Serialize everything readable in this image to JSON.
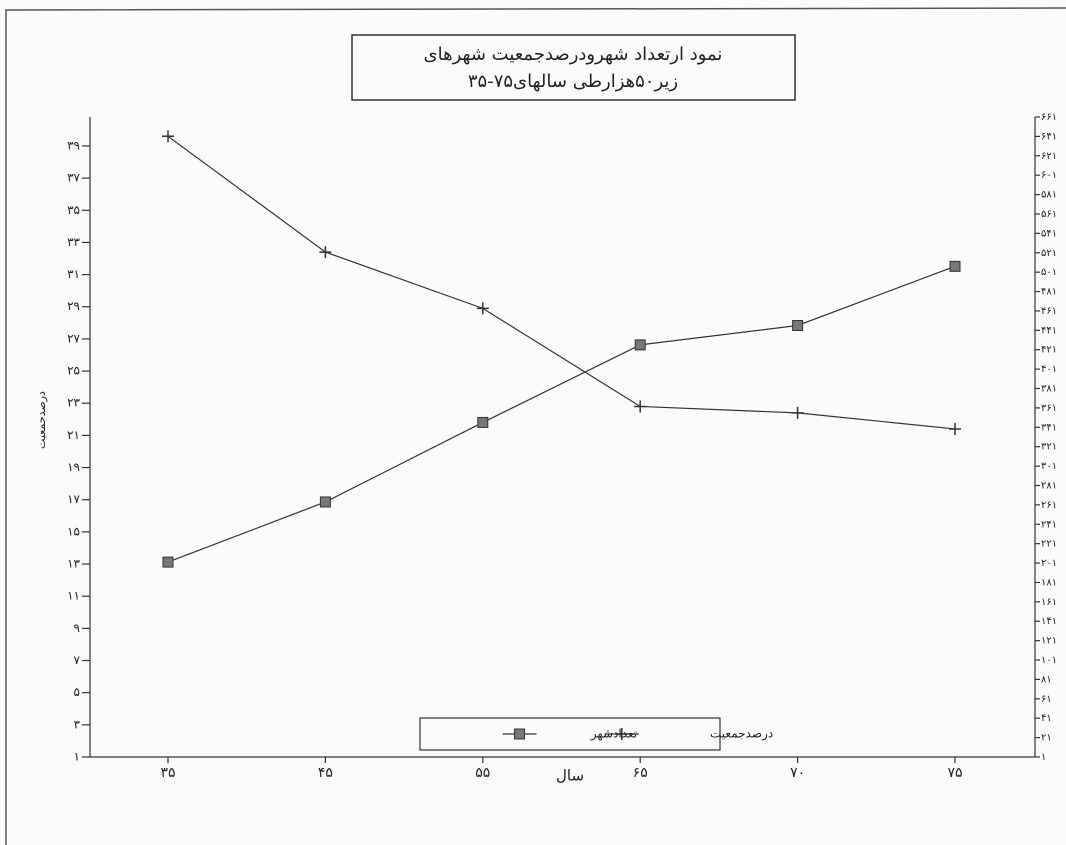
{
  "chart_data": {
    "type": "line",
    "title": [
      "نمود ارتعداد شهرودرصدجمعیت شهرهای",
      "زیر۵۰هزارطی سالهای۷۵-۳۵"
    ],
    "x_label": "سال",
    "y_label": "درصدجمعیت",
    "categories": [
      "۳۵",
      "۴۵",
      "۵۵",
      "۶۵",
      "۷۰",
      "۷۵"
    ],
    "series": [
      {
        "name": "تعدادشهر",
        "color": "#333333",
        "marker": "square",
        "axis": "y2",
        "values": [
          202,
          264,
          346,
          426,
          446,
          507
        ]
      },
      {
        "name": "درصدجمعیت",
        "color": "#333333",
        "marker": "plus",
        "values": [
          39.6,
          32.4,
          28.9,
          22.8,
          22.4,
          21.4
        ]
      }
    ],
    "ylim": [
      1,
      40.8
    ],
    "yticks": [
      {
        "value": 1,
        "label": "۱"
      },
      {
        "value": 3,
        "label": "۳"
      },
      {
        "value": 5,
        "label": "۵"
      },
      {
        "value": 7,
        "label": "۷"
      },
      {
        "value": 9,
        "label": "۹"
      },
      {
        "value": 11,
        "label": "۱۱"
      },
      {
        "value": 13,
        "label": "۱۳"
      },
      {
        "value": 15,
        "label": "۱۵"
      },
      {
        "value": 17,
        "label": "۱۷"
      },
      {
        "value": 19,
        "label": "۱۹"
      },
      {
        "value": 21,
        "label": "۲۱"
      },
      {
        "value": 23,
        "label": "۲۳"
      },
      {
        "value": 25,
        "label": "۲۵"
      },
      {
        "value": 27,
        "label": "۲۷"
      },
      {
        "value": 29,
        "label": "۲۹"
      },
      {
        "value": 31,
        "label": "۳۱"
      },
      {
        "value": 33,
        "label": "۳۳"
      },
      {
        "value": 35,
        "label": "۳۵"
      },
      {
        "value": 37,
        "label": "۳۷"
      },
      {
        "value": 39,
        "label": "۳۹"
      }
    ],
    "y2lim": [
      1,
      661
    ],
    "y2ticks": [
      {
        "value": 1,
        "label": "۱"
      },
      {
        "value": 21,
        "label": "۲۱"
      },
      {
        "value": 41,
        "label": "۴۱"
      },
      {
        "value": 61,
        "label": "۶۱"
      },
      {
        "value": 81,
        "label": "۸۱"
      },
      {
        "value": 101,
        "label": "۱۰۱"
      },
      {
        "value": 121,
        "label": "۱۲۱"
      },
      {
        "value": 141,
        "label": "۱۴۱"
      },
      {
        "value": 161,
        "label": "۱۶۱"
      },
      {
        "value": 181,
        "label": "۱۸۱"
      },
      {
        "value": 201,
        "label": "۲۰۱"
      },
      {
        "value": 221,
        "label": "۲۲۱"
      },
      {
        "value": 241,
        "label": "۲۴۱"
      },
      {
        "value": 261,
        "label": "۲۶۱"
      },
      {
        "value": 281,
        "label": "۲۸۱"
      },
      {
        "value": 301,
        "label": "۳۰۱"
      },
      {
        "value": 321,
        "label": "۳۲۱"
      },
      {
        "value": 341,
        "label": "۳۴۱"
      },
      {
        "value": 361,
        "label": "۳۶۱"
      },
      {
        "value": 381,
        "label": "۳۸۱"
      },
      {
        "value": 401,
        "label": "۴۰۱"
      },
      {
        "value": 421,
        "label": "۴۲۱"
      },
      {
        "value": 441,
        "label": "۴۴۱"
      },
      {
        "value": 461,
        "label": "۴۶۱"
      },
      {
        "value": 481,
        "label": "۴۸۱"
      },
      {
        "value": 501,
        "label": "۵۰۱"
      },
      {
        "value": 521,
        "label": "۵۲۱"
      },
      {
        "value": 541,
        "label": "۵۴۱"
      },
      {
        "value": 561,
        "label": "۵۶۱"
      },
      {
        "value": 581,
        "label": "۵۸۱"
      },
      {
        "value": 601,
        "label": "۶۰۱"
      },
      {
        "value": 621,
        "label": "۶۲۱"
      },
      {
        "value": 641,
        "label": "۶۴۱"
      },
      {
        "value": 661,
        "label": "۶۶۱"
      }
    ],
    "grid": false
  }
}
